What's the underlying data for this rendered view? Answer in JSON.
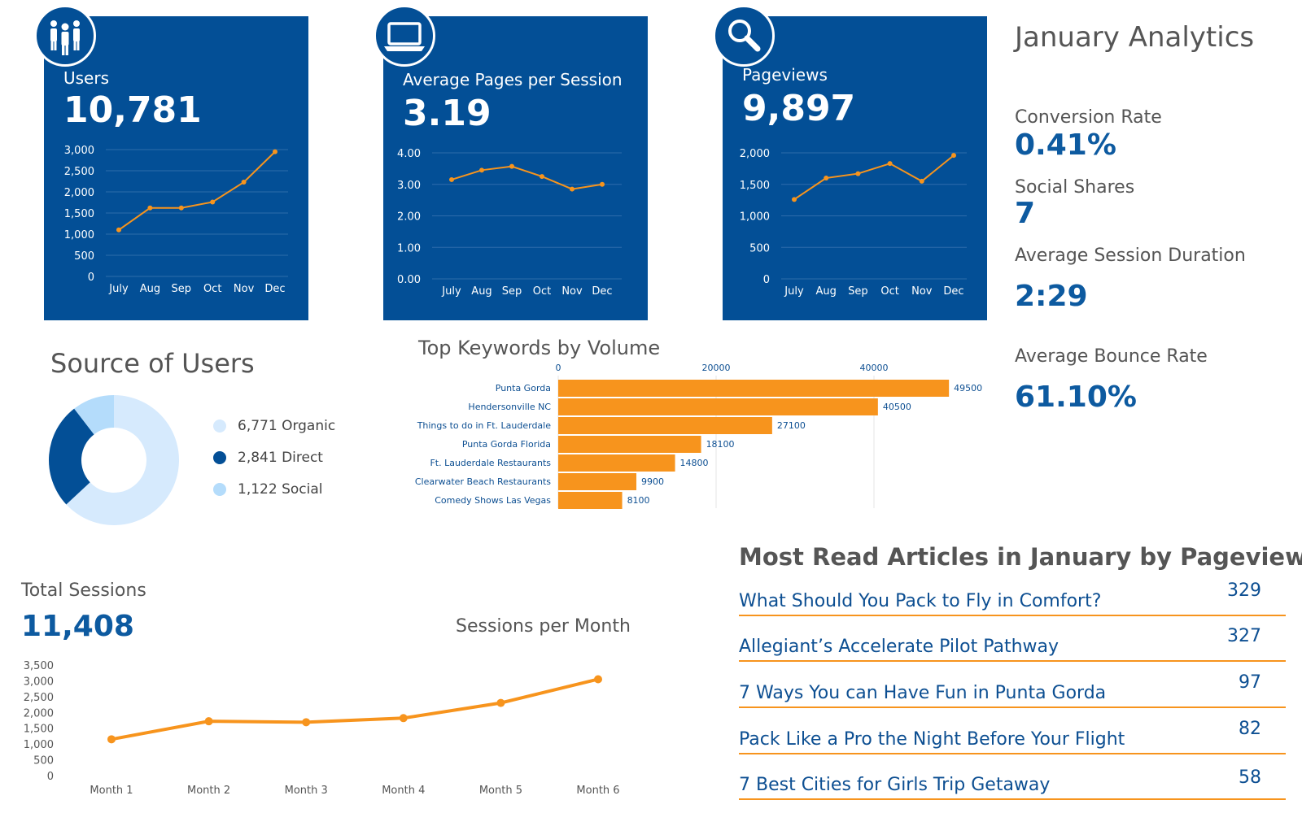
{
  "page_title": "January Analytics",
  "cards": [
    {
      "title": "Users",
      "value": "10,781",
      "icon": "users-icon"
    },
    {
      "title": "Average Pages per Session",
      "value": "3.19",
      "icon": "laptop-icon"
    },
    {
      "title": "Pageviews",
      "value": "9,897",
      "icon": "magnifier-icon"
    }
  ],
  "stats": [
    {
      "label": "Conversion Rate",
      "value": "0.41%"
    },
    {
      "label": "Social Shares",
      "value": "7"
    },
    {
      "label": "Average Session Duration",
      "value": "2:29"
    },
    {
      "label": "Average Bounce Rate",
      "value": "61.10%"
    }
  ],
  "source": {
    "title": "Source of Users",
    "legend": [
      {
        "label": "6,771 Organic",
        "color": "#d6eafd"
      },
      {
        "label": "2,841 Direct",
        "color": "#034f96"
      },
      {
        "label": "1,122 Social",
        "color": "#b4dcfb"
      }
    ]
  },
  "sessions": {
    "title": "Total Sessions",
    "value": "11,408",
    "chart_title": "Sessions per Month"
  },
  "articles": {
    "title": "Most Read Articles in January by Pageviews",
    "items": [
      {
        "title": "What Should You Pack to Fly in Comfort?",
        "views": "329"
      },
      {
        "title": "Allegiant’s Accelerate Pilot Pathway",
        "views": "327"
      },
      {
        "title": "7 Ways You can Have Fun in Punta Gorda",
        "views": "97"
      },
      {
        "title": "Pack Like a Pro the Night Before Your Flight",
        "views": "82"
      },
      {
        "title": "7 Best Cities for Girls Trip Getaway",
        "views": "58"
      }
    ]
  },
  "colors": {
    "navy": "#034f96",
    "orange": "#f7941d",
    "accent_blue": "#0d5aa0"
  },
  "chart_data": [
    {
      "type": "line",
      "id": "users",
      "categories": [
        "July",
        "Aug",
        "Sep",
        "Oct",
        "Nov",
        "Dec"
      ],
      "values": [
        1100,
        1620,
        1620,
        1760,
        2230,
        2950
      ],
      "ylim": [
        0,
        3000
      ],
      "yticks": [
        0,
        500,
        1000,
        1500,
        2000,
        2500,
        3000
      ],
      "ytick_labels": [
        "0",
        "500",
        "1,000",
        "1,500",
        "2,000",
        "2,500",
        "3,000"
      ],
      "grid": true
    },
    {
      "type": "line",
      "id": "pages",
      "categories": [
        "July",
        "Aug",
        "Sep",
        "Oct",
        "Nov",
        "Dec"
      ],
      "values": [
        3.15,
        3.45,
        3.57,
        3.25,
        2.85,
        3.0
      ],
      "ylim": [
        0,
        4
      ],
      "yticks": [
        0,
        1,
        2,
        3,
        4
      ],
      "ytick_labels": [
        "0.00",
        "1.00",
        "2.00",
        "3.00",
        "4.00"
      ],
      "grid": true
    },
    {
      "type": "line",
      "id": "pageviews",
      "categories": [
        "July",
        "Aug",
        "Sep",
        "Oct",
        "Nov",
        "Dec"
      ],
      "values": [
        1260,
        1600,
        1670,
        1830,
        1550,
        1960
      ],
      "ylim": [
        0,
        2000
      ],
      "yticks": [
        0,
        500,
        1000,
        1500,
        2000
      ],
      "ytick_labels": [
        "0",
        "500",
        "1,000",
        "1,500",
        "2,000"
      ],
      "grid": true
    },
    {
      "type": "pie",
      "id": "source",
      "labels": [
        "Organic",
        "Direct",
        "Social"
      ],
      "values": [
        6771,
        2841,
        1122
      ],
      "colors": [
        "#d6eafd",
        "#034f96",
        "#b4dcfb"
      ]
    },
    {
      "type": "bar",
      "id": "keywords",
      "orientation": "horizontal",
      "title": "Top Keywords by Volume",
      "categories": [
        "Punta Gorda",
        "Hendersonville NC",
        "Things to do in Ft. Lauderdale",
        "Punta Gorda Florida",
        "Ft. Lauderdale Restaurants",
        "Clearwater Beach Restaurants",
        "Comedy Shows Las Vegas"
      ],
      "values": [
        49500,
        40500,
        27100,
        18100,
        14800,
        9900,
        8100
      ],
      "xlim": [
        0,
        50000
      ],
      "xticks": [
        0,
        20000,
        40000
      ],
      "color": "#f7941d"
    },
    {
      "type": "line",
      "id": "sessions",
      "categories": [
        "Month 1",
        "Month 2",
        "Month 3",
        "Month 4",
        "Month 5",
        "Month 6"
      ],
      "values": [
        1150,
        1720,
        1690,
        1820,
        2300,
        3050
      ],
      "ylim": [
        0,
        3500
      ],
      "yticks": [
        0,
        500,
        1000,
        1500,
        2000,
        2500,
        3000,
        3500
      ],
      "ytick_labels": [
        "0",
        "500",
        "1,000",
        "1,500",
        "2,000",
        "2,500",
        "3,000",
        "3,500"
      ],
      "grid": false
    }
  ]
}
